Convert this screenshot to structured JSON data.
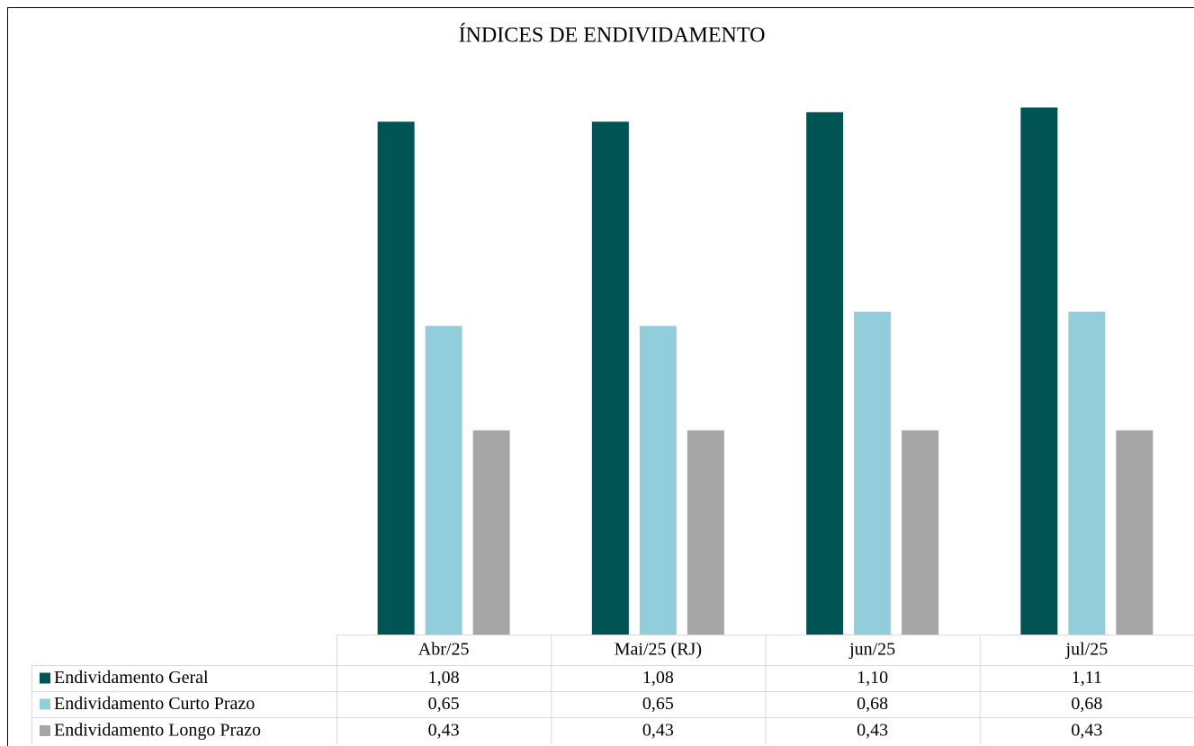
{
  "chart_data": {
    "type": "bar",
    "title": "ÍNDICES DE ENDIVIDAMENTO",
    "categories": [
      "Abr/25",
      "Mai/25  (RJ)",
      "jun/25",
      "jul/25"
    ],
    "ylim": [
      0,
      1.2
    ],
    "series": [
      {
        "name": "Endividamento Geral",
        "color": "#005454",
        "values": [
          1.08,
          1.08,
          1.1,
          1.11
        ],
        "value_labels": [
          "1,08",
          "1,08",
          "1,10",
          "1,11"
        ]
      },
      {
        "name": "Endividamento Curto Prazo",
        "color": "#92cddc",
        "values": [
          0.65,
          0.65,
          0.68,
          0.68
        ],
        "value_labels": [
          "0,65",
          "0,65",
          "0,68",
          "0,68"
        ]
      },
      {
        "name": "Endividamento Longo Prazo",
        "color": "#a6a6a6",
        "values": [
          0.43,
          0.43,
          0.43,
          0.43
        ],
        "value_labels": [
          "0,43",
          "0,43",
          "0,43",
          "0,43"
        ]
      }
    ]
  }
}
